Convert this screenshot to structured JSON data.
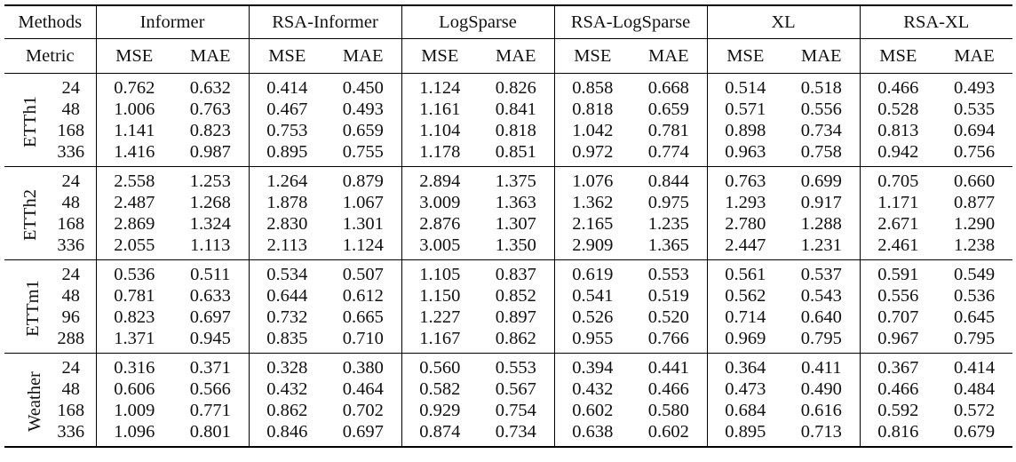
{
  "header": {
    "methods_label": "Methods",
    "metric_label": "Metric",
    "models": [
      "Informer",
      "RSA-Informer",
      "LogSparse",
      "RSA-LogSparse",
      "XL",
      "RSA-XL"
    ],
    "metrics": [
      "MSE",
      "MAE"
    ]
  },
  "datasets": [
    {
      "name": "ETTh1",
      "rows": [
        {
          "horizon": "24",
          "values": [
            "0.762",
            "0.632",
            "0.414",
            "0.450",
            "1.124",
            "0.826",
            "0.858",
            "0.668",
            "0.514",
            "0.518",
            "0.466",
            "0.493"
          ],
          "bold": [
            false,
            false,
            true,
            true,
            false,
            false,
            true,
            true,
            false,
            false,
            true,
            true
          ]
        },
        {
          "horizon": "48",
          "values": [
            "1.006",
            "0.763",
            "0.467",
            "0.493",
            "1.161",
            "0.841",
            "0.818",
            "0.659",
            "0.571",
            "0.556",
            "0.528",
            "0.535"
          ],
          "bold": [
            false,
            false,
            true,
            true,
            false,
            false,
            true,
            true,
            false,
            false,
            true,
            true
          ]
        },
        {
          "horizon": "168",
          "values": [
            "1.141",
            "0.823",
            "0.753",
            "0.659",
            "1.104",
            "0.818",
            "1.042",
            "0.781",
            "0.898",
            "0.734",
            "0.813",
            "0.694"
          ],
          "bold": [
            false,
            false,
            true,
            true,
            false,
            false,
            true,
            true,
            false,
            false,
            true,
            true
          ]
        },
        {
          "horizon": "336",
          "values": [
            "1.416",
            "0.987",
            "0.895",
            "0.755",
            "1.178",
            "0.851",
            "0.972",
            "0.774",
            "0.963",
            "0.758",
            "0.942",
            "0.756"
          ],
          "bold": [
            false,
            false,
            true,
            true,
            false,
            false,
            true,
            true,
            false,
            false,
            true,
            true
          ]
        }
      ]
    },
    {
      "name": "ETTh2",
      "rows": [
        {
          "horizon": "24",
          "values": [
            "2.558",
            "1.253",
            "1.264",
            "0.879",
            "2.894",
            "1.375",
            "1.076",
            "0.844",
            "0.763",
            "0.699",
            "0.705",
            "0.660"
          ],
          "bold": [
            false,
            false,
            true,
            true,
            false,
            false,
            true,
            true,
            false,
            false,
            true,
            true
          ]
        },
        {
          "horizon": "48",
          "values": [
            "2.487",
            "1.268",
            "1.878",
            "1.067",
            "3.009",
            "1.363",
            "1.362",
            "0.975",
            "1.293",
            "0.917",
            "1.171",
            "0.877"
          ],
          "bold": [
            false,
            false,
            true,
            true,
            false,
            false,
            true,
            true,
            false,
            false,
            true,
            true
          ]
        },
        {
          "horizon": "168",
          "values": [
            "2.869",
            "1.324",
            "2.830",
            "1.301",
            "2.876",
            "1.307",
            "2.165",
            "1.235",
            "2.780",
            "1.288",
            "2.671",
            "1.290"
          ],
          "bold": [
            false,
            false,
            true,
            true,
            false,
            false,
            true,
            true,
            false,
            true,
            true,
            false
          ]
        },
        {
          "horizon": "336",
          "values": [
            "2.055",
            "1.113",
            "2.113",
            "1.124",
            "3.005",
            "1.350",
            "2.909",
            "1.365",
            "2.447",
            "1.231",
            "2.461",
            "1.238"
          ],
          "bold": [
            true,
            true,
            false,
            false,
            false,
            true,
            true,
            false,
            true,
            true,
            false,
            false
          ]
        }
      ]
    },
    {
      "name": "ETTm1",
      "rows": [
        {
          "horizon": "24",
          "values": [
            "0.536",
            "0.511",
            "0.534",
            "0.507",
            "1.105",
            "0.837",
            "0.619",
            "0.553",
            "0.561",
            "0.537",
            "0.591",
            "0.549"
          ],
          "bold": [
            false,
            false,
            true,
            true,
            false,
            false,
            true,
            true,
            true,
            true,
            false,
            false
          ]
        },
        {
          "horizon": "48",
          "values": [
            "0.781",
            "0.633",
            "0.644",
            "0.612",
            "1.150",
            "0.852",
            "0.541",
            "0.519",
            "0.562",
            "0.543",
            "0.556",
            "0.536"
          ],
          "bold": [
            false,
            false,
            true,
            true,
            false,
            false,
            true,
            true,
            false,
            false,
            true,
            true
          ]
        },
        {
          "horizon": "96",
          "values": [
            "0.823",
            "0.697",
            "0.732",
            "0.665",
            "1.227",
            "0.897",
            "0.526",
            "0.520",
            "0.714",
            "0.640",
            "0.707",
            "0.645"
          ],
          "bold": [
            false,
            false,
            true,
            true,
            false,
            false,
            true,
            true,
            false,
            true,
            true,
            false
          ]
        },
        {
          "horizon": "288",
          "values": [
            "1.371",
            "0.945",
            "0.835",
            "0.710",
            "1.167",
            "0.862",
            "0.955",
            "0.766",
            "0.969",
            "0.795",
            "0.967",
            "0.795"
          ],
          "bold": [
            false,
            false,
            true,
            true,
            false,
            false,
            true,
            true,
            false,
            false,
            true,
            true
          ]
        }
      ]
    },
    {
      "name": "Weather",
      "rows": [
        {
          "horizon": "24",
          "values": [
            "0.316",
            "0.371",
            "0.328",
            "0.380",
            "0.560",
            "0.553",
            "0.394",
            "0.441",
            "0.364",
            "0.411",
            "0.367",
            "0.414"
          ],
          "bold": [
            true,
            true,
            false,
            false,
            false,
            false,
            true,
            true,
            true,
            true,
            false,
            false
          ]
        },
        {
          "horizon": "48",
          "values": [
            "0.606",
            "0.566",
            "0.432",
            "0.464",
            "0.582",
            "0.567",
            "0.432",
            "0.466",
            "0.473",
            "0.490",
            "0.466",
            "0.484"
          ],
          "bold": [
            false,
            false,
            true,
            true,
            false,
            false,
            true,
            true,
            false,
            false,
            true,
            true
          ]
        },
        {
          "horizon": "168",
          "values": [
            "1.009",
            "0.771",
            "0.862",
            "0.702",
            "0.929",
            "0.754",
            "0.602",
            "0.580",
            "0.684",
            "0.616",
            "0.592",
            "0.572"
          ],
          "bold": [
            false,
            false,
            true,
            true,
            false,
            false,
            true,
            true,
            false,
            false,
            true,
            true
          ]
        },
        {
          "horizon": "336",
          "values": [
            "1.096",
            "0.801",
            "0.846",
            "0.697",
            "0.874",
            "0.734",
            "0.638",
            "0.602",
            "0.895",
            "0.713",
            "0.816",
            "0.679"
          ],
          "bold": [
            false,
            false,
            true,
            true,
            false,
            false,
            true,
            true,
            false,
            false,
            true,
            true
          ]
        }
      ]
    }
  ]
}
